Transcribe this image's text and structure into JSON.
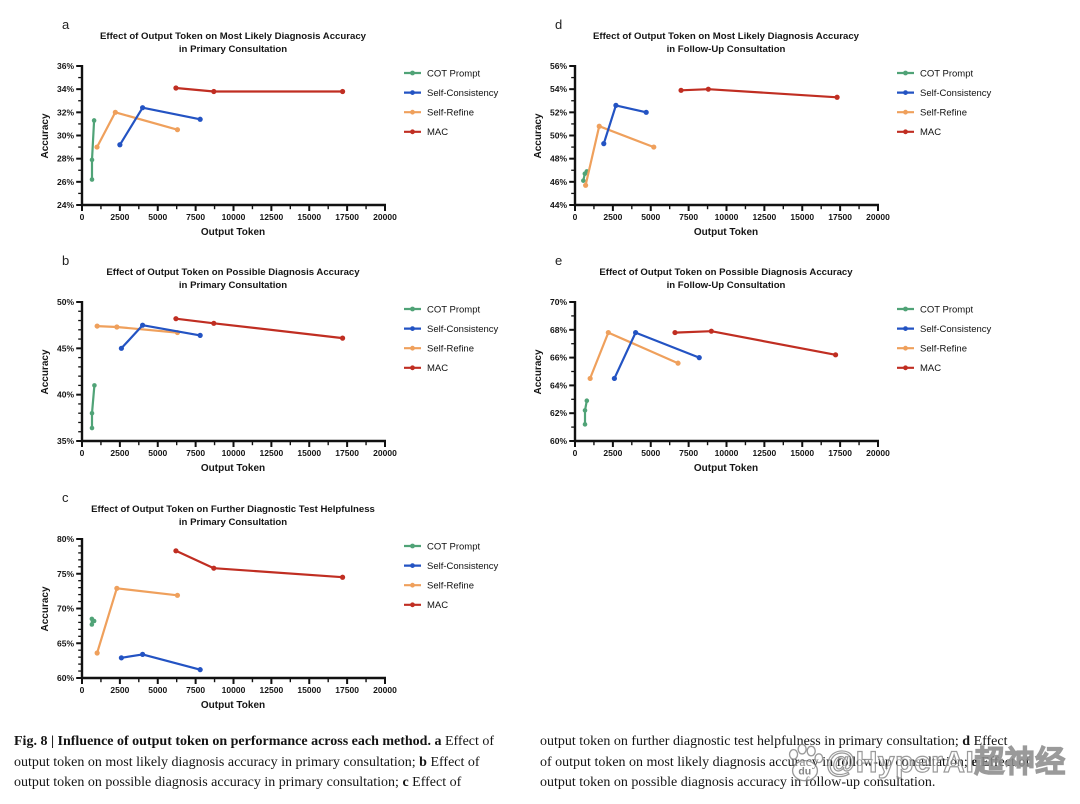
{
  "page": {
    "background": "#ffffff"
  },
  "legend_methods": [
    {
      "name": "COT Prompt",
      "color": "#50A377"
    },
    {
      "name": "Self-Consistency",
      "color": "#2353C3"
    },
    {
      "name": "Self-Refine",
      "color": "#EFA05C"
    },
    {
      "name": "MAC",
      "color": "#C02E22"
    }
  ],
  "chart_data": [
    {
      "type": "line",
      "panel": "a",
      "title": "Effect of Output Token on Most Likely Diagnosis Accuracy",
      "subtitle": "in Primary Consultation",
      "xlabel": "Output Token",
      "ylabel": "Accuracy",
      "xlim": [
        0,
        20000
      ],
      "ylim": [
        24,
        36
      ],
      "y_minor_step": 1,
      "x_ticks": [
        [
          0,
          "0"
        ],
        [
          2500,
          "2500"
        ],
        [
          5000,
          "5000"
        ],
        [
          7500,
          "7500"
        ],
        [
          10000,
          "10000"
        ],
        [
          12500,
          "12500"
        ],
        [
          15000,
          "15000"
        ],
        [
          17500,
          "17500"
        ],
        [
          20000,
          "20000"
        ]
      ],
      "y_ticks": [
        [
          24,
          "24%"
        ],
        [
          26,
          "26%"
        ],
        [
          28,
          "28%"
        ],
        [
          30,
          "30%"
        ],
        [
          32,
          "32%"
        ],
        [
          34,
          "34%"
        ],
        [
          36,
          "36%"
        ]
      ],
      "series": [
        {
          "name": "COT Prompt",
          "points": [
            [
              660,
              26.2
            ],
            [
              660,
              27.9
            ],
            [
              800,
              31.3
            ]
          ]
        },
        {
          "name": "Self-Refine",
          "points": [
            [
              990,
              29.0
            ],
            [
              2200,
              32.0
            ],
            [
              6300,
              30.5
            ]
          ]
        },
        {
          "name": "Self-Consistency",
          "points": [
            [
              2500,
              29.2
            ],
            [
              4000,
              32.4
            ],
            [
              7800,
              31.4
            ]
          ]
        },
        {
          "name": "MAC",
          "points": [
            [
              6200,
              34.1
            ],
            [
              8700,
              33.8
            ],
            [
              17200,
              33.8
            ]
          ]
        }
      ]
    },
    {
      "type": "line",
      "panel": "b",
      "title": "Effect of Output Token on Possible Diagnosis Accuracy",
      "subtitle": "in Primary Consultation",
      "xlabel": "Output Token",
      "ylabel": "Accuracy",
      "xlim": [
        0,
        20000
      ],
      "ylim": [
        35,
        50
      ],
      "y_minor_step": 1,
      "x_ticks": [
        [
          0,
          "0"
        ],
        [
          2500,
          "2500"
        ],
        [
          5000,
          "5000"
        ],
        [
          7500,
          "7500"
        ],
        [
          10000,
          "10000"
        ],
        [
          12500,
          "12500"
        ],
        [
          15000,
          "15000"
        ],
        [
          17500,
          "17500"
        ],
        [
          20000,
          "20000"
        ]
      ],
      "y_ticks": [
        [
          35,
          "35%"
        ],
        [
          40,
          "40%"
        ],
        [
          45,
          "45%"
        ],
        [
          50,
          "50%"
        ]
      ],
      "series": [
        {
          "name": "COT Prompt",
          "points": [
            [
              660,
              36.4
            ],
            [
              660,
              38.0
            ],
            [
              820,
              41.0
            ]
          ]
        },
        {
          "name": "Self-Refine",
          "points": [
            [
              1000,
              47.4
            ],
            [
              2300,
              47.3
            ],
            [
              6300,
              46.7
            ]
          ]
        },
        {
          "name": "Self-Consistency",
          "points": [
            [
              2600,
              45.0
            ],
            [
              4000,
              47.5
            ],
            [
              7800,
              46.4
            ]
          ]
        },
        {
          "name": "MAC",
          "points": [
            [
              6200,
              48.2
            ],
            [
              8700,
              47.7
            ],
            [
              17200,
              46.1
            ]
          ]
        }
      ]
    },
    {
      "type": "line",
      "panel": "c",
      "title": "Effect of Output Token on Further Diagnostic Test Helpfulness",
      "subtitle": "in Primary Consultation",
      "xlabel": "Output Token",
      "ylabel": "Accuracy",
      "xlim": [
        0,
        20000
      ],
      "ylim": [
        60,
        80
      ],
      "y_minor_step": 1,
      "x_ticks": [
        [
          0,
          "0"
        ],
        [
          2500,
          "2500"
        ],
        [
          5000,
          "5000"
        ],
        [
          7500,
          "7500"
        ],
        [
          10000,
          "10000"
        ],
        [
          12500,
          "12500"
        ],
        [
          15000,
          "15000"
        ],
        [
          17500,
          "17500"
        ],
        [
          20000,
          "20000"
        ]
      ],
      "y_ticks": [
        [
          60,
          "60%"
        ],
        [
          65,
          "65%"
        ],
        [
          70,
          "70%"
        ],
        [
          75,
          "75%"
        ],
        [
          80,
          "80%"
        ]
      ],
      "series": [
        {
          "name": "COT Prompt",
          "points": [
            [
              650,
              67.7
            ],
            [
              650,
              68.5
            ],
            [
              800,
              68.2
            ]
          ]
        },
        {
          "name": "Self-Refine",
          "points": [
            [
              1000,
              63.6
            ],
            [
              2300,
              72.9
            ],
            [
              6300,
              71.9
            ]
          ]
        },
        {
          "name": "Self-Consistency",
          "points": [
            [
              2600,
              62.9
            ],
            [
              4000,
              63.4
            ],
            [
              7800,
              61.2
            ]
          ]
        },
        {
          "name": "MAC",
          "points": [
            [
              6200,
              78.3
            ],
            [
              8700,
              75.8
            ],
            [
              17200,
              74.5
            ]
          ]
        }
      ]
    },
    {
      "type": "line",
      "panel": "d",
      "title": "Effect of Output Token on Most Likely Diagnosis Accuracy",
      "subtitle": "in Follow-Up Consultation",
      "xlabel": "Output Token",
      "ylabel": "Accuracy",
      "xlim": [
        0,
        20000
      ],
      "ylim": [
        44,
        56
      ],
      "y_minor_step": 1,
      "x_ticks": [
        [
          0,
          "0"
        ],
        [
          2500,
          "2500"
        ],
        [
          5000,
          "5000"
        ],
        [
          7500,
          "7500"
        ],
        [
          10000,
          "10000"
        ],
        [
          12500,
          "12500"
        ],
        [
          15000,
          "15000"
        ],
        [
          17500,
          "17500"
        ],
        [
          20000,
          "20000"
        ]
      ],
      "y_ticks": [
        [
          44,
          "44%"
        ],
        [
          46,
          "46%"
        ],
        [
          48,
          "48%"
        ],
        [
          50,
          "50%"
        ],
        [
          52,
          "52%"
        ],
        [
          54,
          "54%"
        ],
        [
          56,
          "56%"
        ]
      ],
      "series": [
        {
          "name": "COT Prompt",
          "points": [
            [
              550,
              46.1
            ],
            [
              650,
              46.7
            ],
            [
              780,
              46.9
            ]
          ]
        },
        {
          "name": "Self-Refine",
          "points": [
            [
              700,
              45.7
            ],
            [
              1600,
              50.8
            ],
            [
              5200,
              49.0
            ]
          ]
        },
        {
          "name": "Self-Consistency",
          "points": [
            [
              1900,
              49.3
            ],
            [
              2700,
              52.6
            ],
            [
              4700,
              52.0
            ]
          ]
        },
        {
          "name": "MAC",
          "points": [
            [
              7000,
              53.9
            ],
            [
              8800,
              54.0
            ],
            [
              17300,
              53.3
            ]
          ]
        }
      ]
    },
    {
      "type": "line",
      "panel": "e",
      "title": "Effect of Output Token on Possible Diagnosis Accuracy",
      "subtitle": "in Follow-Up Consultation",
      "xlabel": "Output Token",
      "ylabel": "Accuracy",
      "xlim": [
        0,
        20000
      ],
      "ylim": [
        60,
        70
      ],
      "y_minor_step": 1,
      "x_ticks": [
        [
          0,
          "0"
        ],
        [
          2500,
          "2500"
        ],
        [
          5000,
          "5000"
        ],
        [
          7500,
          "7500"
        ],
        [
          10000,
          "10000"
        ],
        [
          12500,
          "12500"
        ],
        [
          15000,
          "15000"
        ],
        [
          17500,
          "17500"
        ],
        [
          20000,
          "20000"
        ]
      ],
      "y_ticks": [
        [
          60,
          "60%"
        ],
        [
          62,
          "62%"
        ],
        [
          64,
          "64%"
        ],
        [
          66,
          "66%"
        ],
        [
          68,
          "68%"
        ],
        [
          70,
          "70%"
        ]
      ],
      "series": [
        {
          "name": "COT Prompt",
          "points": [
            [
              660,
              61.2
            ],
            [
              660,
              62.2
            ],
            [
              780,
              62.9
            ]
          ]
        },
        {
          "name": "Self-Refine",
          "points": [
            [
              1000,
              64.5
            ],
            [
              2200,
              67.8
            ],
            [
              6800,
              65.6
            ]
          ]
        },
        {
          "name": "Self-Consistency",
          "points": [
            [
              2600,
              64.5
            ],
            [
              4000,
              67.8
            ],
            [
              8200,
              66.0
            ]
          ]
        },
        {
          "name": "MAC",
          "points": [
            [
              6600,
              67.8
            ],
            [
              9000,
              67.9
            ],
            [
              17200,
              66.2
            ]
          ]
        }
      ]
    }
  ],
  "caption": {
    "columns": [
      {
        "lines": [
          [
            {
              "t": "Fig. 8 | Influence of output token on performance across each method.",
              "b": true
            },
            {
              "t": " ",
              "b": false
            },
            {
              "t": "a",
              "b": true
            },
            {
              "t": " Effect of",
              "b": false
            }
          ],
          [
            {
              "t": "output token on most likely diagnosis accuracy in primary consultation; ",
              "b": false
            },
            {
              "t": "b",
              "b": true
            },
            {
              "t": " Effect of",
              "b": false
            }
          ],
          [
            {
              "t": "output token on possible diagnosis accuracy in primary consultation; ",
              "b": false
            },
            {
              "t": "c",
              "b": true
            },
            {
              "t": " Effect of",
              "b": false
            }
          ]
        ]
      },
      {
        "lines": [
          [
            {
              "t": "output token on further diagnostic test helpfulness in primary consultation; ",
              "b": false
            },
            {
              "t": "d",
              "b": true
            },
            {
              "t": " Effect",
              "b": false
            }
          ],
          [
            {
              "t": "of output token on most likely diagnosis accuracy in follow-up consultation; ",
              "b": false
            },
            {
              "t": "e",
              "b": true
            },
            {
              "t": " Effect of",
              "b": false
            }
          ],
          [
            {
              "t": "output token on possible diagnosis accuracy in follow-up consultation.",
              "b": false
            }
          ]
        ]
      }
    ]
  },
  "watermark": {
    "text": "@HyperAI超神经",
    "icon": "baidu-paw-icon",
    "icon_label": "du"
  }
}
